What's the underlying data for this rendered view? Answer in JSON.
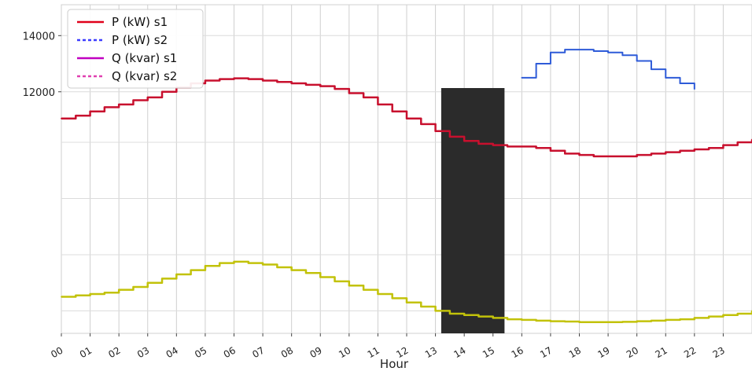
{
  "chart_data": {
    "type": "line",
    "title": "",
    "xlabel": "Hour",
    "ylabel": "",
    "xlim": [
      0,
      24
    ],
    "ylim": [
      3400,
      15100
    ],
    "yticks": [
      12000,
      14000
    ],
    "ytick_labels": [
      "12000",
      "14000"
    ],
    "x_ticks": [
      0,
      1,
      2,
      3,
      4,
      5,
      6,
      7,
      8,
      9,
      10,
      11,
      12,
      13,
      14,
      15,
      16,
      17,
      18,
      19,
      20,
      21,
      22,
      23
    ],
    "x_tick_labels": [
      "00",
      "01",
      "02",
      "03",
      "04",
      "05",
      "06",
      "07",
      "08",
      "09",
      "10",
      "11",
      "12",
      "13",
      "14",
      "15",
      "16",
      "17",
      "18",
      "19",
      "20",
      "21",
      "22",
      "23"
    ],
    "grid": true,
    "legend_position": "top-left",
    "legend": [
      {
        "label": "P (kW) s1",
        "color": "#e0001a",
        "style": "solid"
      },
      {
        "label": "P (kW) s2",
        "color": "#3b3bff",
        "style": "dashed"
      },
      {
        "label": "Q (kvar) s1",
        "color": "#c000c0",
        "style": "solid"
      },
      {
        "label": "Q (kvar) s2",
        "color": "#e040b0",
        "style": "dashed"
      }
    ],
    "shaded_band": {
      "x_start": 13.2,
      "x_end": 15.4,
      "color": "#2b2b2b"
    },
    "series": [
      {
        "name": "P (kW) s1",
        "color": "#c8102e",
        "x": [
          0,
          0.5,
          1,
          1.5,
          2,
          2.5,
          3,
          3.5,
          4,
          4.5,
          5,
          5.5,
          6,
          6.5,
          7,
          7.5,
          8,
          8.5,
          9,
          9.5,
          10,
          10.5,
          11,
          11.5,
          12,
          12.5,
          13,
          13.5,
          14,
          14.5,
          15,
          15.5,
          16,
          16.5,
          17,
          17.5,
          18,
          18.5,
          19,
          19.5,
          20,
          20.5,
          21,
          21.5,
          22,
          22.5,
          23,
          23.5,
          24
        ],
        "values": [
          11050,
          11150,
          11300,
          11450,
          11550,
          11700,
          11800,
          12000,
          12150,
          12300,
          12400,
          12450,
          12480,
          12450,
          12400,
          12350,
          12300,
          12250,
          12200,
          12100,
          11950,
          11800,
          11550,
          11300,
          11050,
          10850,
          10600,
          10400,
          10250,
          10150,
          10100,
          10050,
          10050,
          10000,
          9900,
          9800,
          9750,
          9700,
          9700,
          9700,
          9750,
          9800,
          9850,
          9900,
          9950,
          10000,
          10100,
          10200,
          10300
        ]
      },
      {
        "name": "P (kW) s2",
        "color": "#2e5bd8",
        "x": [
          16.0,
          16.5,
          17.0,
          17.5,
          18.0,
          18.5,
          19.0,
          19.5,
          20.0,
          20.5,
          21.0,
          21.5,
          22.0
        ],
        "values": [
          12500,
          13000,
          13400,
          13500,
          13500,
          13450,
          13400,
          13300,
          13100,
          12800,
          12500,
          12300,
          12100
        ]
      },
      {
        "name": "",
        "color": "#c2c20a",
        "x": [
          0,
          0.5,
          1,
          1.5,
          2,
          2.5,
          3,
          3.5,
          4,
          4.5,
          5,
          5.5,
          6,
          6.5,
          7,
          7.5,
          8,
          8.5,
          9,
          9.5,
          10,
          10.5,
          11,
          11.5,
          12,
          12.5,
          13,
          13.5,
          14,
          14.5,
          15,
          15.5,
          16,
          16.5,
          17,
          17.5,
          18,
          18.5,
          19,
          19.5,
          20,
          20.5,
          21,
          21.5,
          22,
          22.5,
          23,
          23.5,
          24
        ],
        "values": [
          4700,
          4750,
          4800,
          4850,
          4950,
          5050,
          5200,
          5350,
          5500,
          5650,
          5800,
          5900,
          5950,
          5900,
          5850,
          5750,
          5650,
          5550,
          5400,
          5250,
          5100,
          4950,
          4800,
          4650,
          4500,
          4350,
          4200,
          4100,
          4050,
          4000,
          3950,
          3900,
          3880,
          3850,
          3830,
          3820,
          3800,
          3800,
          3800,
          3810,
          3830,
          3850,
          3880,
          3900,
          3950,
          4000,
          4050,
          4100,
          4200
        ]
      }
    ]
  }
}
